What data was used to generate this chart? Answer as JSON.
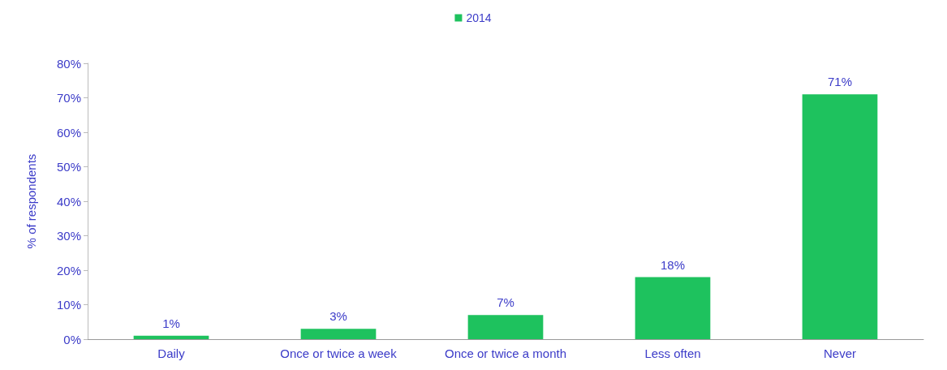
{
  "chart_data": {
    "type": "bar",
    "categories": [
      "Daily",
      "Once or twice a week",
      "Once or twice a month",
      "Less often",
      "Never"
    ],
    "series": [
      {
        "name": "2014",
        "color": "#1ec25e",
        "values": [
          1,
          3,
          7,
          18,
          71
        ],
        "value_labels": [
          "1%",
          "3%",
          "7%",
          "18%",
          "71%"
        ]
      }
    ],
    "ylabel": "% of respondents",
    "ylim": [
      0,
      80
    ],
    "yticks": [
      {
        "value": 0,
        "label": "0%"
      },
      {
        "value": 10,
        "label": "10%"
      },
      {
        "value": 20,
        "label": "20%"
      },
      {
        "value": 30,
        "label": "30%"
      },
      {
        "value": 40,
        "label": "40%"
      },
      {
        "value": 50,
        "label": "50%"
      },
      {
        "value": 60,
        "label": "60%"
      },
      {
        "value": 70,
        "label": "70%"
      },
      {
        "value": 80,
        "label": "80%"
      }
    ],
    "grid": false,
    "legend": "top"
  }
}
